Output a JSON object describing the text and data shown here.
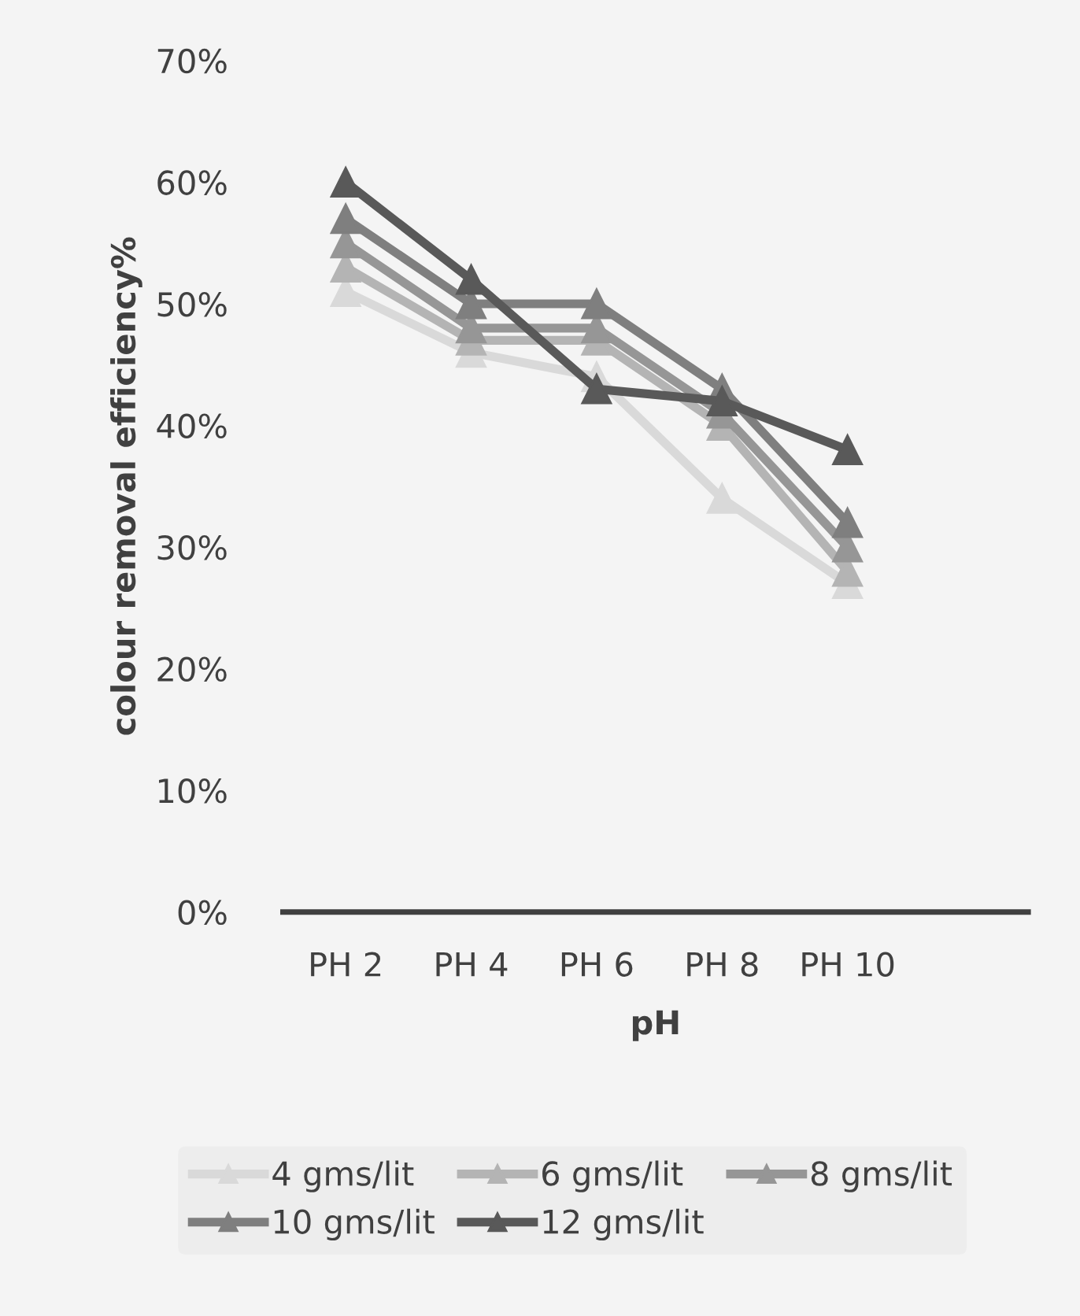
{
  "chart_data": {
    "type": "line",
    "xlabel": "pH",
    "ylabel": "colour removal efficiency%",
    "categories": [
      "PH 2",
      "PH 4",
      "PH 6",
      "PH 8",
      "PH 10"
    ],
    "series": [
      {
        "name": "4 gms/lit",
        "color": "#d9d9d9",
        "values": [
          0.51,
          0.46,
          0.44,
          0.34,
          0.27
        ]
      },
      {
        "name": "6 gms/lit",
        "color": "#b4b4b4",
        "values": [
          0.53,
          0.47,
          0.47,
          0.4,
          0.28
        ]
      },
      {
        "name": "8 gms/lit",
        "color": "#969696",
        "values": [
          0.55,
          0.48,
          0.48,
          0.41,
          0.3
        ]
      },
      {
        "name": "10 gms/lit",
        "color": "#7f7f7f",
        "values": [
          0.57,
          0.5,
          0.5,
          0.43,
          0.32
        ]
      },
      {
        "name": "12 gms/lit",
        "color": "#595959",
        "values": [
          0.6,
          0.52,
          0.43,
          0.42,
          0.38
        ]
      }
    ],
    "ylim": [
      0,
      0.7
    ],
    "yticks": [
      {
        "value": 0,
        "label": "0%"
      },
      {
        "value": 0.1,
        "label": "10%"
      },
      {
        "value": 0.2,
        "label": "20%"
      },
      {
        "value": 0.3,
        "label": "30%"
      },
      {
        "value": 0.4,
        "label": "40%"
      },
      {
        "value": 0.5,
        "label": "50%"
      },
      {
        "value": 0.6,
        "label": "60%"
      },
      {
        "value": 0.7,
        "label": "70%"
      }
    ],
    "marker": "triangle",
    "line_style": "solid",
    "legend": "bottom",
    "grid": false
  }
}
